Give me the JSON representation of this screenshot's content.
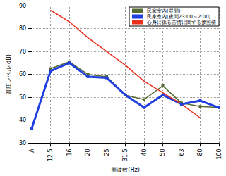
{
  "chart_data": {
    "type": "line",
    "xlabel": "周波数(Hz)",
    "ylabel": "音圧レベル(dB)",
    "categories": [
      "A",
      "12.5",
      "16",
      "20",
      "25",
      "31.5",
      "40",
      "50",
      "63",
      "80",
      "100"
    ],
    "series": [
      {
        "name": "民家室内(昼間)",
        "color": "#556b2f",
        "marker": "square",
        "values": [
          null,
          62.5,
          65.5,
          60,
          59,
          51,
          49,
          55,
          47.5,
          46,
          45.5
        ]
      },
      {
        "name": "民家室内(夜間23:00～2:00)",
        "color": "#1f3fe0",
        "marker": "square",
        "values": [
          36.5,
          61.5,
          65,
          59,
          58.5,
          51,
          45.5,
          51,
          47,
          48.5,
          45.5
        ]
      },
      {
        "name": "心身に係る苦情に関する参照値",
        "color": "#e8301c",
        "marker": "none",
        "values": [
          null,
          88,
          83,
          76,
          70,
          64,
          57,
          52,
          47,
          41,
          null
        ]
      }
    ],
    "ylim": [
      30,
      90
    ],
    "yticks": [
      30,
      40,
      50,
      60,
      70,
      80,
      90
    ],
    "grid": true,
    "legend": "upper right"
  }
}
